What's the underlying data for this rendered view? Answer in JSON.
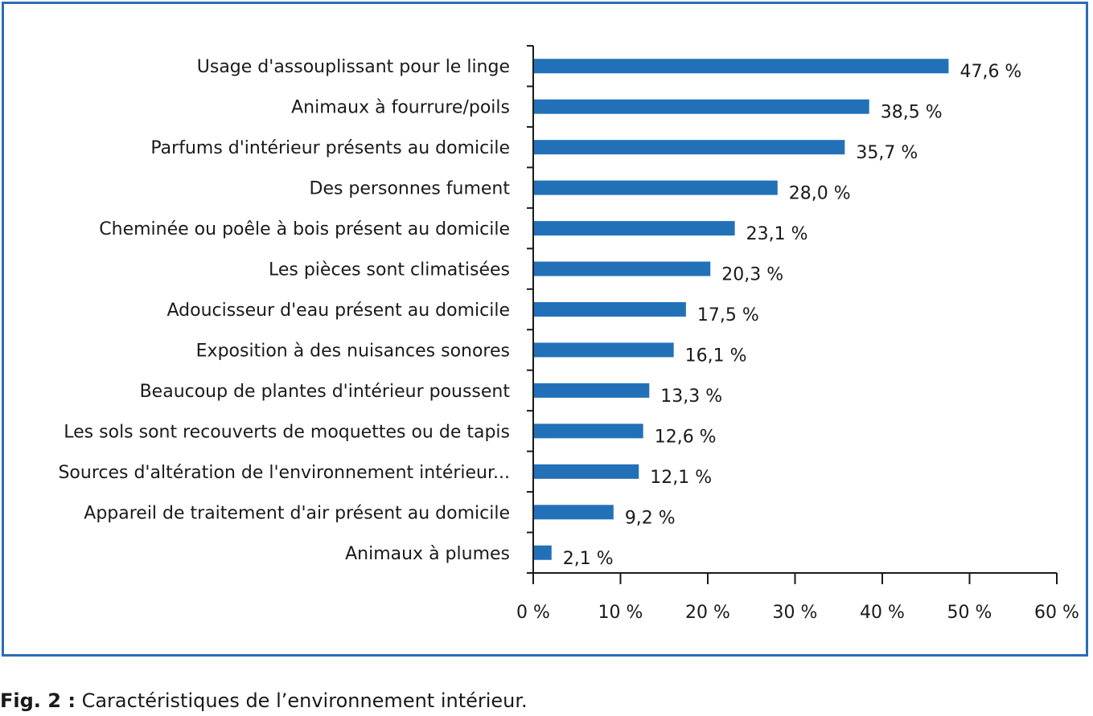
{
  "caption": {
    "prefix": "Fig. 2 :",
    "text": "Caractéristiques de l’environnement intérieur."
  },
  "chart_data": {
    "type": "bar",
    "orientation": "horizontal",
    "categories": [
      "Usage d'assouplissant pour le linge",
      "Animaux à fourrure/poils",
      "Parfums d'intérieur présents au domicile",
      "Des personnes fument",
      "Cheminée ou poêle à bois présent au domicile",
      "Les pièces sont climatisées",
      "Adoucisseur d'eau présent au domicile",
      "Exposition à des nuisances sonores",
      "Beaucoup de plantes d'intérieur poussent",
      "Les sols sont recouverts de moquettes ou de tapis",
      "Sources d'altération de l'environnement intérieur...",
      "Appareil de traitement d'air présent au domicile",
      "Animaux à plumes"
    ],
    "values": [
      47.6,
      38.5,
      35.7,
      28.0,
      23.1,
      20.3,
      17.5,
      16.1,
      13.3,
      12.6,
      12.1,
      9.2,
      2.1
    ],
    "value_labels": [
      "47,6 %",
      "38,5 %",
      "35,7 %",
      "28,0 %",
      "23,1 %",
      "20,3 %",
      "17,5 %",
      "16,1 %",
      "13,3 %",
      "12,6 %",
      "12,1 %",
      "9,2 %",
      "2,1 %"
    ],
    "xlim": [
      0,
      60
    ],
    "xticks": [
      0,
      10,
      20,
      30,
      40,
      50,
      60
    ],
    "xtick_labels": [
      "0 %",
      "10 %",
      "20 %",
      "30 %",
      "40 %",
      "50 %",
      "60 %"
    ],
    "bar_color": "#2271b8",
    "frame_color": "#2a6db5",
    "grid": false,
    "legend": "none"
  }
}
